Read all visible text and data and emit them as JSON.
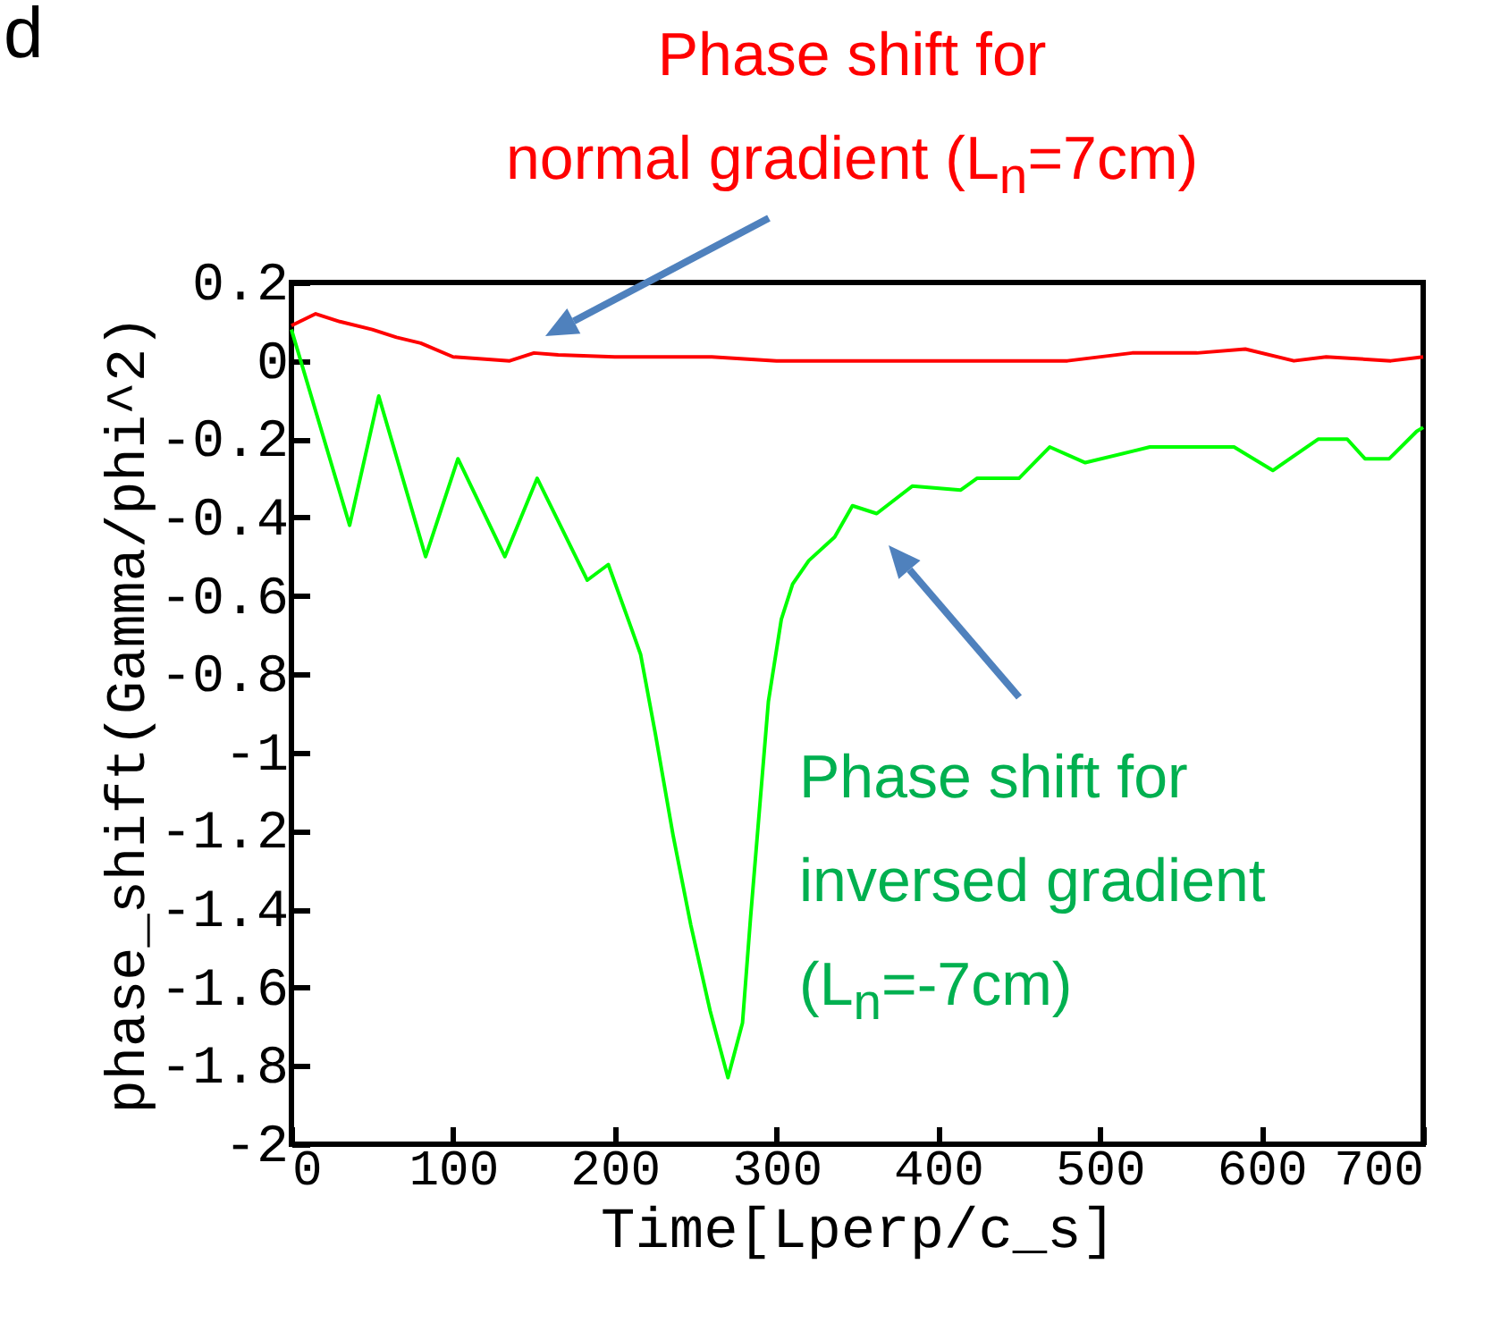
{
  "chart_data": {
    "type": "line",
    "xlabel": "Time[Lperp/c_s]",
    "ylabel": "phase_shift(Gamma/phi^2)",
    "xlim": [
      0,
      700
    ],
    "xticks": [
      0,
      100,
      200,
      300,
      400,
      500,
      600,
      700
    ],
    "ylim": [
      -2,
      0.2
    ],
    "yticks": [
      0.2,
      0,
      -0.2,
      -0.4,
      -0.6,
      -0.8,
      -1,
      -1.2,
      -1.4,
      -1.6,
      -1.8,
      -2
    ],
    "grid": false,
    "legend": false,
    "series": [
      {
        "color": "#ff0000",
        "x": [
          0,
          15,
          30,
          50,
          65,
          80,
          100,
          135,
          150,
          165,
          200,
          260,
          300,
          400,
          480,
          520,
          560,
          590,
          620,
          640,
          680,
          700
        ],
        "values": [
          0.09,
          0.12,
          0.1,
          0.08,
          0.06,
          0.045,
          0.01,
          0.0,
          0.02,
          0.015,
          0.01,
          0.01,
          0.0,
          0.0,
          0.0,
          0.02,
          0.02,
          0.03,
          0.0,
          0.01,
          0.0,
          0.01
        ]
      },
      {
        "color": "#00ff00",
        "x": [
          0,
          36,
          54,
          83,
          103,
          132,
          152,
          183,
          196,
          210,
          216,
          225,
          236,
          247,
          259,
          270,
          279,
          284,
          290,
          295,
          303,
          310,
          320,
          336,
          347,
          362,
          384,
          414,
          424,
          450,
          469,
          491,
          531,
          583,
          607,
          635,
          653,
          664,
          679,
          696,
          700
        ],
        "values": [
          0.08,
          -0.42,
          -0.09,
          -0.5,
          -0.25,
          -0.5,
          -0.3,
          -0.56,
          -0.52,
          -0.68,
          -0.75,
          -0.95,
          -1.21,
          -1.44,
          -1.66,
          -1.83,
          -1.69,
          -1.42,
          -1.12,
          -0.87,
          -0.66,
          -0.57,
          -0.51,
          -0.45,
          -0.37,
          -0.39,
          -0.32,
          -0.33,
          -0.3,
          -0.3,
          -0.22,
          -0.26,
          -0.22,
          -0.22,
          -0.28,
          -0.2,
          -0.2,
          -0.25,
          -0.25,
          -0.18,
          -0.17
        ]
      }
    ],
    "annotations": [
      "Phase shift for\nnormal gradient (L$_{n}$=7cm)",
      "Phase shift for\ninversed gradient\n(L$_{n}$=-7cm)",
      "d"
    ]
  }
}
